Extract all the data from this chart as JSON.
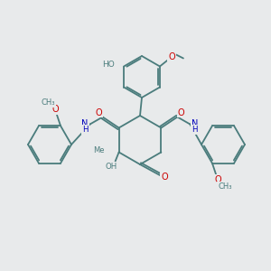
{
  "bg_color": "#e8eaeb",
  "bond_color": "#4a7c7c",
  "oxygen_color": "#cc0000",
  "nitrogen_color": "#0000bb",
  "lw": 1.3,
  "figsize": [
    3.0,
    3.0
  ],
  "dpi": 100,
  "xlim": [
    0,
    300
  ],
  "ylim": [
    0,
    300
  ],
  "fs": 7.0
}
